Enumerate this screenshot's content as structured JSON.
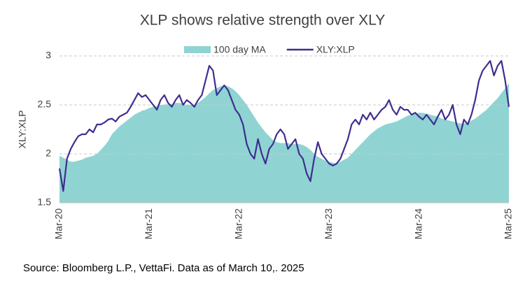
{
  "chart_data": {
    "type": "line",
    "title": "XLP shows relative strength over XLY",
    "ylabel": "XLY:XLP",
    "source": "Source: Bloomberg L.P., VettaFi. Data as of March 10,. 2025",
    "categories": [
      "Mar-20",
      null,
      null,
      null,
      null,
      null,
      null,
      null,
      null,
      null,
      null,
      null,
      null,
      null,
      null,
      null,
      null,
      null,
      null,
      null,
      null,
      null,
      null,
      null,
      "Mar-21",
      null,
      null,
      null,
      null,
      null,
      null,
      null,
      null,
      null,
      null,
      null,
      null,
      null,
      null,
      null,
      null,
      null,
      null,
      null,
      null,
      null,
      null,
      null,
      "Mar-22",
      null,
      null,
      null,
      null,
      null,
      null,
      null,
      null,
      null,
      null,
      null,
      null,
      null,
      null,
      null,
      null,
      null,
      null,
      null,
      null,
      null,
      null,
      null,
      "Mar-23",
      null,
      null,
      null,
      null,
      null,
      null,
      null,
      null,
      null,
      null,
      null,
      null,
      null,
      null,
      null,
      null,
      null,
      null,
      null,
      null,
      null,
      null,
      null,
      "Mar-24",
      null,
      null,
      null,
      null,
      null,
      null,
      null,
      null,
      null,
      null,
      null,
      null,
      null,
      null,
      null,
      null,
      null,
      null,
      null,
      null,
      null,
      null,
      null,
      "Mar-25"
    ],
    "series": [
      {
        "name": "100 day MA",
        "kind": "area",
        "color": "#8fd4d2",
        "values": [
          1.98,
          1.96,
          1.94,
          1.92,
          1.92,
          1.93,
          1.94,
          1.96,
          1.97,
          1.98,
          2.0,
          2.04,
          2.08,
          2.13,
          2.2,
          2.24,
          2.28,
          2.31,
          2.34,
          2.37,
          2.4,
          2.42,
          2.44,
          2.45,
          2.47,
          2.48,
          2.49,
          2.5,
          2.5,
          2.51,
          2.51,
          2.52,
          2.52,
          2.51,
          2.5,
          2.5,
          2.5,
          2.52,
          2.55,
          2.58,
          2.62,
          2.65,
          2.67,
          2.69,
          2.7,
          2.69,
          2.67,
          2.64,
          2.6,
          2.55,
          2.5,
          2.44,
          2.38,
          2.32,
          2.27,
          2.22,
          2.18,
          2.14,
          2.12,
          2.11,
          2.11,
          2.11,
          2.1,
          2.1,
          2.1,
          2.09,
          2.07,
          2.04,
          2.0,
          1.97,
          1.95,
          1.93,
          1.92,
          1.91,
          1.9,
          1.92,
          1.94,
          1.96,
          2.0,
          2.04,
          2.08,
          2.12,
          2.16,
          2.2,
          2.23,
          2.26,
          2.28,
          2.3,
          2.31,
          2.32,
          2.33,
          2.35,
          2.37,
          2.39,
          2.4,
          2.41,
          2.42,
          2.42,
          2.41,
          2.4,
          2.39,
          2.38,
          2.36,
          2.35,
          2.34,
          2.33,
          2.32,
          2.31,
          2.31,
          2.32,
          2.34,
          2.36,
          2.39,
          2.42,
          2.45,
          2.49,
          2.53,
          2.57,
          2.62,
          2.67,
          2.72
        ]
      },
      {
        "name": "XLY:XLP",
        "kind": "line",
        "color": "#3f2d8f",
        "values": [
          1.85,
          1.62,
          1.95,
          2.05,
          2.12,
          2.18,
          2.2,
          2.2,
          2.25,
          2.22,
          2.3,
          2.3,
          2.32,
          2.35,
          2.36,
          2.33,
          2.38,
          2.4,
          2.42,
          2.48,
          2.55,
          2.62,
          2.58,
          2.6,
          2.55,
          2.5,
          2.45,
          2.55,
          2.6,
          2.52,
          2.48,
          2.55,
          2.6,
          2.5,
          2.55,
          2.52,
          2.48,
          2.55,
          2.6,
          2.75,
          2.9,
          2.85,
          2.6,
          2.65,
          2.7,
          2.65,
          2.55,
          2.45,
          2.4,
          2.3,
          2.1,
          2.0,
          1.95,
          2.15,
          2.0,
          1.9,
          2.05,
          2.1,
          2.2,
          2.25,
          2.2,
          2.05,
          2.1,
          2.15,
          2.0,
          1.95,
          1.8,
          1.72,
          1.95,
          2.12,
          2.0,
          1.95,
          1.9,
          1.88,
          1.9,
          1.95,
          2.05,
          2.15,
          2.3,
          2.35,
          2.3,
          2.4,
          2.35,
          2.42,
          2.35,
          2.4,
          2.45,
          2.48,
          2.55,
          2.45,
          2.4,
          2.48,
          2.45,
          2.45,
          2.4,
          2.42,
          2.38,
          2.35,
          2.4,
          2.35,
          2.3,
          2.38,
          2.45,
          2.35,
          2.4,
          2.5,
          2.3,
          2.2,
          2.35,
          2.3,
          2.4,
          2.55,
          2.75,
          2.85,
          2.9,
          2.95,
          2.8,
          2.9,
          2.95,
          2.75,
          2.48
        ]
      }
    ],
    "ylim": [
      1.5,
      3
    ],
    "yticks": [
      1.5,
      2,
      2.5,
      3
    ],
    "grid": true
  }
}
